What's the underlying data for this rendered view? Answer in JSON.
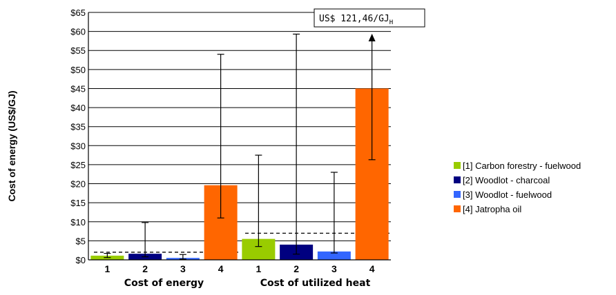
{
  "chart_data": {
    "type": "bar",
    "ylabel": "Cost of energy (US$/GJ)",
    "ylim": [
      0,
      65
    ],
    "ytick_step": 5,
    "ytick_prefix": "$",
    "grid": "horizontal",
    "legend_position": "right",
    "groups": [
      {
        "label": "Cost of energy",
        "categories": [
          "1",
          "2",
          "3",
          "4"
        ],
        "threshold": 2
      },
      {
        "label": "Cost of utilized heat",
        "categories": [
          "1",
          "2",
          "3",
          "4"
        ],
        "threshold": 7
      }
    ],
    "series": [
      {
        "name": "[1] Carbon forestry - fuelwood",
        "color": "#99cc00",
        "values": [
          1.1,
          5.5
        ],
        "err_low": [
          0.6,
          3.5
        ],
        "err_high": [
          1.7,
          27.5
        ]
      },
      {
        "name": "[2] Woodlot - charcoal",
        "color": "#000080",
        "values": [
          1.6,
          4.0
        ],
        "err_low": [
          0.8,
          1.5
        ],
        "err_high": [
          9.8,
          59.3
        ]
      },
      {
        "name": "[3] Woodlot - fuelwood",
        "color": "#3366ff",
        "values": [
          0.5,
          2.2
        ],
        "err_low": [
          0.2,
          1.8
        ],
        "err_high": [
          1.4,
          23.0
        ]
      },
      {
        "name": "[4] Jatropha oil",
        "color": "#ff6600",
        "values": [
          19.6,
          45.0
        ],
        "err_low": [
          11.0,
          26.3
        ],
        "err_high": [
          54.0,
          121.46
        ]
      }
    ],
    "annotation": {
      "text": "US$ 121,46/GJ",
      "subscript": "H"
    }
  }
}
